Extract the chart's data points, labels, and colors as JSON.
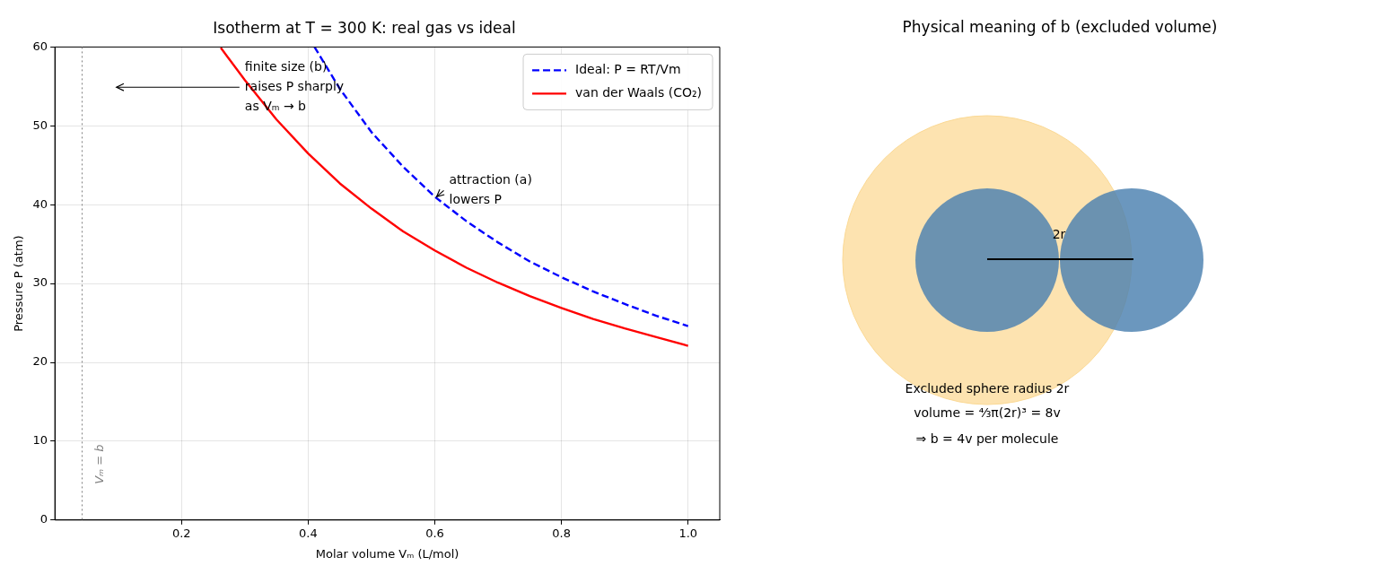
{
  "chart_data": [
    {
      "type": "line",
      "title": "Isotherm at T = 300 K: real gas vs ideal",
      "xlabel": "Molar volume Vₘ (L/mol)",
      "ylabel": "Pressure P (atm)",
      "xlim": [
        0,
        1.05
      ],
      "xticks": [
        0.2,
        0.4,
        0.6,
        0.8,
        {
          "value": 1,
          "label": "1.0"
        }
      ],
      "ylim": [
        0,
        60
      ],
      "yticks": [
        0,
        10,
        20,
        30,
        40,
        50,
        60
      ],
      "grid": true,
      "legend": "top right",
      "series": [
        {
          "name": "Ideal: P = RT/Vm",
          "color": "#0000ff",
          "line_style": "dashed",
          "x": [
            0.41,
            0.45,
            0.5,
            0.55,
            0.6,
            0.65,
            0.7,
            0.75,
            0.8,
            0.85,
            0.9,
            0.95,
            1.0
          ],
          "values": [
            60.0,
            54.7,
            49.2,
            44.8,
            41.0,
            37.9,
            35.2,
            32.8,
            30.8,
            29.0,
            27.4,
            25.9,
            24.6
          ]
        },
        {
          "name": "van der Waals (CO₂)",
          "color": "#ff0000",
          "line_style": "solid",
          "x": [
            0.262,
            0.3,
            0.35,
            0.4,
            0.45,
            0.5,
            0.55,
            0.6,
            0.65,
            0.7,
            0.75,
            0.8,
            0.85,
            0.9,
            0.95,
            1.0
          ],
          "values": [
            59.9,
            55.8,
            50.8,
            46.5,
            42.7,
            39.5,
            36.6,
            34.2,
            32.0,
            30.1,
            28.4,
            26.9,
            25.5,
            24.3,
            23.2,
            22.1
          ]
        }
      ],
      "ref_lines": [
        {
          "axis": "x",
          "value": 0.043,
          "label": "Vₘ = b",
          "color": "#808080",
          "line_style": "dotted"
        }
      ],
      "annotations": [
        "finite size (b)\nraises P sharply\nas Vₘ → b",
        {
          "text": "attraction (a)\nlowers P",
          "x": 0.6,
          "y": 41
        }
      ]
    },
    {
      "type": "other",
      "title": "Physical meaning of b (excluded volume)",
      "annotations": [
        "2r",
        "Excluded sphere radius 2r",
        "volume = ⁴⁄₃π(2r)³ = 8v",
        "⇒ b = 4v per molecule"
      ]
    }
  ]
}
